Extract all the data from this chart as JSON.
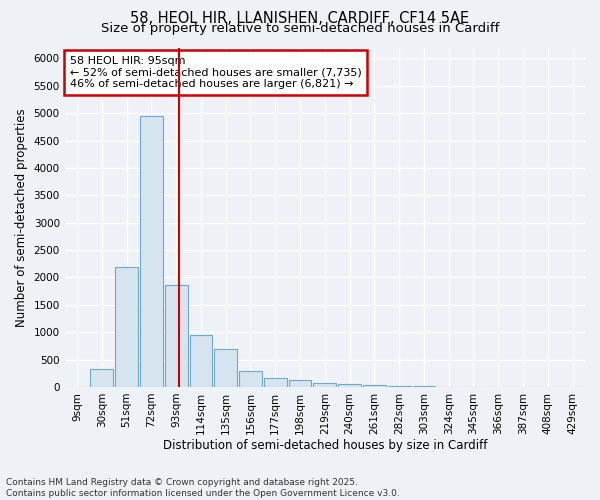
{
  "title1": "58, HEOL HIR, LLANISHEN, CARDIFF, CF14 5AE",
  "title2": "Size of property relative to semi-detached houses in Cardiff",
  "xlabel": "Distribution of semi-detached houses by size in Cardiff",
  "ylabel": "Number of semi-detached properties",
  "categories": [
    "9sqm",
    "30sqm",
    "51sqm",
    "72sqm",
    "93sqm",
    "114sqm",
    "135sqm",
    "156sqm",
    "177sqm",
    "198sqm",
    "219sqm",
    "240sqm",
    "261sqm",
    "282sqm",
    "303sqm",
    "324sqm",
    "345sqm",
    "366sqm",
    "387sqm",
    "408sqm",
    "429sqm"
  ],
  "values": [
    0,
    330,
    2200,
    4950,
    1870,
    950,
    700,
    300,
    170,
    120,
    80,
    55,
    35,
    20,
    12,
    7,
    3,
    1,
    0,
    0,
    0
  ],
  "bar_color": "#d6e4f0",
  "bar_edge_color": "#6fa8c8",
  "vline_color": "#cc0000",
  "annotation_title": "58 HEOL HIR: 95sqm",
  "annotation_left": "← 52% of semi-detached houses are smaller (7,735)",
  "annotation_right": "46% of semi-detached houses are larger (6,821) →",
  "annotation_box_color": "#ffffff",
  "annotation_box_edge": "#cc0000",
  "ylim": [
    0,
    6200
  ],
  "yticks": [
    0,
    500,
    1000,
    1500,
    2000,
    2500,
    3000,
    3500,
    4000,
    4500,
    5000,
    5500,
    6000
  ],
  "footer1": "Contains HM Land Registry data © Crown copyright and database right 2025.",
  "footer2": "Contains public sector information licensed under the Open Government Licence v3.0.",
  "bg_color": "#eef2f7",
  "grid_color": "#ffffff",
  "title_fontsize": 10.5,
  "subtitle_fontsize": 9.5,
  "tick_fontsize": 7.5,
  "label_fontsize": 8.5,
  "footer_fontsize": 6.5,
  "annot_fontsize": 8.0
}
